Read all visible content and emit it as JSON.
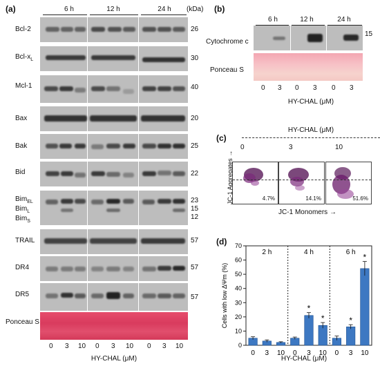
{
  "panel_a": {
    "label": "(a)",
    "timepoints": [
      "6 h",
      "12 h",
      "24 h"
    ],
    "kda_header": "(kDa)",
    "blots": [
      {
        "name": "Bcl-2",
        "kda": "26"
      },
      {
        "name": "Bcl-xL",
        "kda": "30"
      },
      {
        "name": "Mcl-1",
        "kda": "40"
      },
      {
        "name": "Bax",
        "kda": "20"
      },
      {
        "name": "Bak",
        "kda": "25"
      },
      {
        "name": "Bid",
        "kda": "22"
      },
      {
        "name": "Bim",
        "kda": "23\n15\n12",
        "sub_labels": [
          "BimEL",
          "BimL",
          "BimS"
        ]
      },
      {
        "name": "TRAIL",
        "kda": "57"
      },
      {
        "name": "DR4",
        "kda": "57"
      },
      {
        "name": "DR5",
        "kda": "57"
      }
    ],
    "ponceau_label": "Ponceau S",
    "doses": [
      "0",
      "3",
      "10",
      "0",
      "3",
      "10",
      "0",
      "3",
      "10"
    ],
    "xaxis_label": "HY-CHAL (μM)"
  },
  "panel_b": {
    "label": "(b)",
    "timepoints": [
      "6 h",
      "12 h",
      "24 h"
    ],
    "blot_label": "Cytochrome c",
    "kda": "15",
    "ponceau_label": "Ponceau S",
    "doses": [
      "0",
      "3",
      "0",
      "3",
      "0",
      "3"
    ],
    "xaxis_label": "HY-CHAL (μM)"
  },
  "panel_c": {
    "label": "(c)",
    "header": "HY-CHAL (μM)",
    "doses": [
      "0",
      "3",
      "10"
    ],
    "percentages": [
      "4.7%",
      "14.1%",
      "51.6%"
    ],
    "ylabel": "JC-1 Aggregates →",
    "xlabel": "JC-1 Monomers →"
  },
  "panel_d": {
    "label": "(d)",
    "xaxis_label": "HY-CHAL (μM)"
  },
  "chart_data": {
    "type": "bar",
    "groups": [
      "2 h",
      "4 h",
      "6 h"
    ],
    "categories": [
      "0",
      "3",
      "10",
      "0",
      "3",
      "10",
      "0",
      "3",
      "10"
    ],
    "values": [
      5,
      3,
      2,
      5,
      21,
      14,
      5,
      13,
      54
    ],
    "errors": [
      1,
      0.8,
      0.5,
      0.8,
      2,
      2,
      1.5,
      1.5,
      5
    ],
    "significant": [
      false,
      false,
      false,
      false,
      true,
      true,
      false,
      true,
      true
    ],
    "ylabel": "Cells with low ΔΨm (%)",
    "ylim": [
      0,
      70
    ],
    "yticks": [
      0,
      10,
      20,
      30,
      40,
      50,
      60,
      70
    ],
    "bar_color": "#3d78c2",
    "star": "*"
  }
}
